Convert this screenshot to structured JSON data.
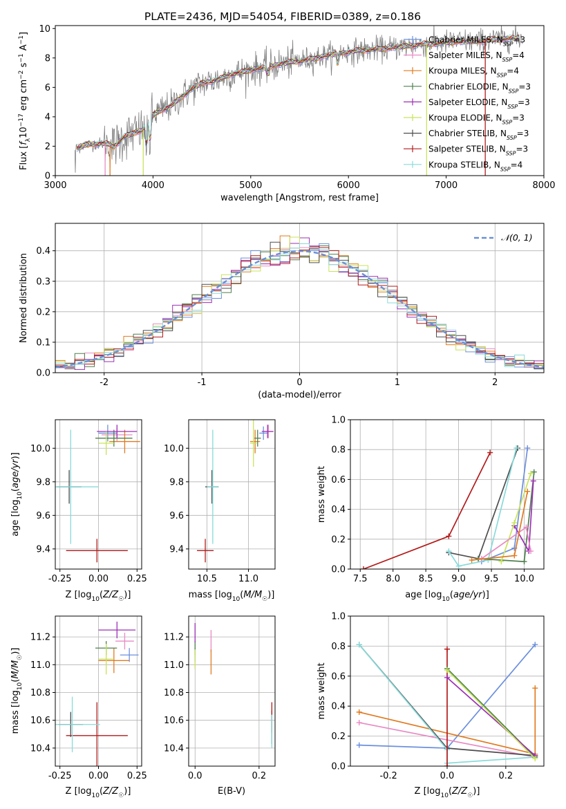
{
  "colors": {
    "Chabrier MILES": "#6b8fde",
    "Salpeter MILES": "#e88ac4",
    "Kroupa MILES": "#e07a1f",
    "Chabrier ELODIE": "#4e7f4e",
    "Salpeter ELODIE": "#9b2fb5",
    "Kroupa ELODIE": "#c8e35a",
    "Chabrier STELIB": "#4d4d4d",
    "Salpeter STELIB": "#b21a1a",
    "Kroupa STELIB": "#88dada",
    "data": "#808080",
    "gauss": "#6a8fd6"
  },
  "chart_data": [
    {
      "type": "line",
      "title": "PLATE=2436, MJD=54054, FIBERID=0389, z=0.186",
      "xlabel": "wavelength [Angstrom, rest frame]",
      "ylabel": "Flux [fλ10^-17 erg cm^-2 s^-1 A^-1]",
      "xlim": [
        3000,
        8000
      ],
      "ylim": [
        0,
        10.2
      ],
      "xticks": [
        3000,
        4000,
        5000,
        6000,
        7000,
        8000
      ],
      "yticks": [
        0,
        2,
        4,
        6,
        8,
        10
      ],
      "legend": {
        "placement": "top-right",
        "entries": [
          {
            "model": "Chabrier MILES",
            "label": "Chabrier MILES, N",
            "nssp": 3
          },
          {
            "model": "Salpeter MILES",
            "label": "Salpeter MILES, N",
            "nssp": 4
          },
          {
            "model": "Kroupa MILES",
            "label": "Kroupa MILES, N",
            "nssp": 4
          },
          {
            "model": "Chabrier ELODIE",
            "label": "Chabrier ELODIE, N",
            "nssp": 3
          },
          {
            "model": "Salpeter ELODIE",
            "label": "Salpeter ELODIE, N",
            "nssp": 3
          },
          {
            "model": "Kroupa ELODIE",
            "label": "Kroupa ELODIE, N",
            "nssp": 3
          },
          {
            "model": "Chabrier STELIB",
            "label": "Chabrier STELIB, N",
            "nssp": 3
          },
          {
            "model": "Salpeter STELIB",
            "label": "Salpeter STELIB, N",
            "nssp": 3
          },
          {
            "model": "Kroupa STELIB",
            "label": "Kroupa STELIB, N",
            "nssp": 4
          }
        ],
        "subscript": "SSP"
      },
      "continuum": {
        "x": [
          3200,
          3300,
          3400,
          3500,
          3600,
          3700,
          3800,
          3900,
          4000,
          4100,
          4200,
          4300,
          4400,
          4500,
          4600,
          4700,
          4800,
          4900,
          5000,
          5100,
          5200,
          5300,
          5400,
          5500,
          5600,
          5700,
          5800,
          5900,
          6000,
          6100,
          6200,
          6300,
          6400,
          6500,
          6600,
          6700,
          6800,
          6900,
          7000,
          7100,
          7200,
          7300,
          7400,
          7500,
          7600,
          7700,
          7800
        ],
        "y": [
          1.8,
          2.1,
          2.15,
          2.2,
          2.0,
          2.6,
          2.9,
          3.1,
          4.1,
          4.5,
          4.8,
          5.4,
          5.9,
          6.3,
          6.4,
          6.6,
          6.9,
          7.0,
          7.2,
          7.3,
          7.4,
          7.6,
          7.7,
          7.8,
          7.9,
          8.05,
          8.2,
          8.3,
          8.4,
          8.5,
          8.55,
          8.6,
          8.65,
          8.75,
          8.8,
          8.9,
          8.95,
          9.0,
          9.05,
          9.1,
          9.15,
          9.1,
          9.2,
          9.25,
          9.3,
          9.35,
          9.4
        ]
      }
    },
    {
      "type": "histogram",
      "xlabel": "(data-model)/error",
      "ylabel": "Normed distribution",
      "xlim": [
        -2.5,
        2.5
      ],
      "ylim": [
        0,
        0.49
      ],
      "xticks": [
        -2,
        -1,
        0,
        1,
        2
      ],
      "yticks": [
        0.0,
        0.1,
        0.2,
        0.3,
        0.4
      ],
      "legend": {
        "placement": "top-right",
        "label": "𝒩(0, 1)"
      }
    },
    {
      "type": "scatter",
      "name": "age-vs-Z",
      "xlabel": "Z [log10(Z/Z☉)]",
      "ylabel": "age  [log10(age/yr)]",
      "xlim": [
        -0.28,
        0.28
      ],
      "ylim": [
        9.28,
        10.17
      ],
      "xticks": [
        -0.25,
        0.0,
        0.25
      ],
      "yticks": [
        9.4,
        9.6,
        9.8,
        10.0
      ],
      "points": [
        {
          "model": "Chabrier MILES",
          "x": 0.06,
          "y": 10.09,
          "xerr": 0.06,
          "yerr": 0.05
        },
        {
          "model": "Salpeter MILES",
          "x": 0.12,
          "y": 10.08,
          "xerr": 0.1,
          "yerr": 0.04
        },
        {
          "model": "Kroupa MILES",
          "x": 0.17,
          "y": 10.04,
          "xerr": 0.1,
          "yerr": 0.07
        },
        {
          "model": "Chabrier ELODIE",
          "x": 0.1,
          "y": 10.06,
          "xerr": 0.12,
          "yerr": 0.05
        },
        {
          "model": "Salpeter ELODIE",
          "x": 0.12,
          "y": 10.1,
          "xerr": 0.13,
          "yerr": 0.04
        },
        {
          "model": "Kroupa ELODIE",
          "x": 0.05,
          "y": 10.03,
          "xerr": 0.05,
          "yerr": 0.07
        },
        {
          "model": "Chabrier STELIB",
          "x": -0.19,
          "y": 9.77,
          "xerr": 0.08,
          "yerr": 0.1
        },
        {
          "model": "Salpeter STELIB",
          "x": -0.01,
          "y": 9.39,
          "xerr": 0.2,
          "yerr": 0.07
        },
        {
          "model": "Kroupa STELIB",
          "x": -0.18,
          "y": 9.77,
          "xerr": 0.18,
          "yerr": 0.34
        }
      ]
    },
    {
      "type": "scatter",
      "name": "age-vs-mass",
      "xlabel": "mass [log10(M/M☉)]",
      "ylabel": "",
      "xlim": [
        10.28,
        11.32
      ],
      "ylim": [
        9.28,
        10.17
      ],
      "xticks": [
        10.5,
        11.0
      ],
      "yticks": [
        9.4,
        9.6,
        9.8,
        10.0
      ],
      "points": [
        {
          "model": "Chabrier MILES",
          "x": 11.18,
          "y": 10.09,
          "xerr": 0.05,
          "yerr": 0.04
        },
        {
          "model": "Salpeter MILES",
          "x": 11.24,
          "y": 10.1,
          "xerr": 0.06,
          "yerr": 0.04
        },
        {
          "model": "Kroupa MILES",
          "x": 11.08,
          "y": 10.04,
          "xerr": 0.06,
          "yerr": 0.07
        },
        {
          "model": "Chabrier ELODIE",
          "x": 11.11,
          "y": 10.06,
          "xerr": 0.04,
          "yerr": 0.05
        },
        {
          "model": "Salpeter ELODIE",
          "x": 11.23,
          "y": 10.1,
          "xerr": 0.07,
          "yerr": 0.04
        },
        {
          "model": "Kroupa ELODIE",
          "x": 11.06,
          "y": 10.03,
          "xerr": 0.04,
          "yerr": 0.14
        },
        {
          "model": "Chabrier STELIB",
          "x": 10.56,
          "y": 9.77,
          "xerr": 0.08,
          "yerr": 0.1
        },
        {
          "model": "Salpeter STELIB",
          "x": 10.48,
          "y": 9.39,
          "xerr": 0.1,
          "yerr": 0.07
        },
        {
          "model": "Kroupa STELIB",
          "x": 10.57,
          "y": 9.77,
          "xerr": 0.07,
          "yerr": 0.34
        }
      ]
    },
    {
      "type": "line",
      "name": "mass-weight-vs-age",
      "xlabel": "age  [log10(age/yr)]",
      "ylabel": "mass weight",
      "xlim": [
        7.35,
        10.3
      ],
      "ylim": [
        0,
        1.0
      ],
      "xticks": [
        7.5,
        8.0,
        8.5,
        9.0,
        9.5,
        10.0
      ],
      "yticks": [
        0.0,
        0.2,
        0.4,
        0.6,
        0.8,
        1.0
      ],
      "series": [
        {
          "model": "Salpeter STELIB",
          "x": [
            7.55,
            8.85,
            9.48
          ],
          "y": [
            0.0,
            0.22,
            0.78
          ]
        },
        {
          "model": "Chabrier STELIB",
          "x": [
            8.85,
            9.3,
            9.9
          ],
          "y": [
            0.11,
            0.07,
            0.81
          ]
        },
        {
          "model": "Chabrier MILES",
          "x": [
            9.35,
            9.85,
            10.05
          ],
          "y": [
            0.05,
            0.14,
            0.81
          ]
        },
        {
          "model": "Kroupa STELIB",
          "x": [
            8.85,
            9.0,
            9.45,
            9.88
          ],
          "y": [
            0.12,
            0.02,
            0.06,
            0.81
          ]
        },
        {
          "model": "Chabrier ELODIE",
          "x": [
            9.3,
            10.0,
            10.15
          ],
          "y": [
            0.07,
            0.05,
            0.65
          ]
        },
        {
          "model": "Salpeter ELODIE",
          "x": [
            9.85,
            10.07,
            10.14
          ],
          "y": [
            0.29,
            0.12,
            0.59
          ]
        },
        {
          "model": "Kroupa ELODIE",
          "x": [
            9.65,
            9.85,
            10.1
          ],
          "y": [
            0.05,
            0.31,
            0.64
          ]
        },
        {
          "model": "Salpeter MILES",
          "x": [
            9.35,
            10.03,
            10.1
          ],
          "y": [
            0.07,
            0.28,
            0.12
          ]
        },
        {
          "model": "Kroupa MILES",
          "x": [
            9.2,
            9.85,
            10.05
          ],
          "y": [
            0.06,
            0.09,
            0.52
          ]
        }
      ]
    },
    {
      "type": "scatter",
      "name": "mass-vs-Z",
      "xlabel": "Z [log10(Z/Z☉)]",
      "ylabel": "mass [log10(M/M☉)]",
      "xlim": [
        -0.28,
        0.28
      ],
      "ylim": [
        10.27,
        11.35
      ],
      "xticks": [
        -0.25,
        0.0,
        0.25
      ],
      "yticks": [
        10.4,
        10.6,
        10.8,
        11.0,
        11.2
      ],
      "points": [
        {
          "model": "Chabrier MILES",
          "x": 0.2,
          "y": 11.07,
          "xerr": 0.06,
          "yerr": 0.05
        },
        {
          "model": "Salpeter MILES",
          "x": 0.17,
          "y": 11.17,
          "xerr": 0.06,
          "yerr": 0.06
        },
        {
          "model": "Kroupa MILES",
          "x": 0.1,
          "y": 11.03,
          "xerr": 0.1,
          "yerr": 0.09
        },
        {
          "model": "Chabrier ELODIE",
          "x": 0.05,
          "y": 11.12,
          "xerr": 0.07,
          "yerr": 0.05
        },
        {
          "model": "Salpeter ELODIE",
          "x": 0.12,
          "y": 11.25,
          "xerr": 0.12,
          "yerr": 0.06
        },
        {
          "model": "Kroupa ELODIE",
          "x": 0.05,
          "y": 11.04,
          "xerr": 0.05,
          "yerr": 0.11
        },
        {
          "model": "Chabrier STELIB",
          "x": -0.18,
          "y": 10.57,
          "xerr": 0.08,
          "yerr": 0.09
        },
        {
          "model": "Salpeter STELIB",
          "x": -0.01,
          "y": 10.49,
          "xerr": 0.2,
          "yerr": 0.24
        },
        {
          "model": "Kroupa STELIB",
          "x": -0.17,
          "y": 10.57,
          "xerr": 0.18,
          "yerr": 0.2
        }
      ]
    },
    {
      "type": "scatter",
      "name": "mass-vs-EBV",
      "xlabel": "E(B-V)",
      "ylabel": "",
      "xlim": [
        -0.02,
        0.25
      ],
      "ylim": [
        10.27,
        11.35
      ],
      "xticks": [
        0.0,
        0.2
      ],
      "yticks": [
        10.4,
        10.6,
        10.8,
        11.0,
        11.2
      ],
      "points": [
        {
          "model": "Chabrier MILES",
          "x": 0.0,
          "y": 11.07,
          "xerr": 0.0,
          "yerr": 0.05
        },
        {
          "model": "Salpeter MILES",
          "x": 0.05,
          "y": 11.17,
          "xerr": 0.0,
          "yerr": 0.08
        },
        {
          "model": "Kroupa MILES",
          "x": 0.05,
          "y": 11.02,
          "xerr": 0.0,
          "yerr": 0.09
        },
        {
          "model": "Chabrier ELODIE",
          "x": 0.0,
          "y": 11.12,
          "xerr": 0.0,
          "yerr": 0.05
        },
        {
          "model": "Salpeter ELODIE",
          "x": 0.0,
          "y": 11.23,
          "xerr": 0.0,
          "yerr": 0.07
        },
        {
          "model": "Kroupa ELODIE",
          "x": 0.0,
          "y": 11.04,
          "xerr": 0.0,
          "yerr": 0.07
        },
        {
          "model": "Chabrier STELIB",
          "x": 0.24,
          "y": 10.55,
          "xerr": 0.0,
          "yerr": 0.12
        },
        {
          "model": "Salpeter STELIB",
          "x": 0.24,
          "y": 10.62,
          "xerr": 0.0,
          "yerr": 0.11
        },
        {
          "model": "Kroupa STELIB",
          "x": 0.24,
          "y": 10.52,
          "xerr": 0.0,
          "yerr": 0.12
        }
      ]
    },
    {
      "type": "line",
      "name": "mass-weight-vs-Z",
      "xlabel": "Z [log10(Z/Z☉)]",
      "ylabel": "mass weight",
      "xlim": [
        -0.33,
        0.33
      ],
      "ylim": [
        0,
        1.0
      ],
      "xticks": [
        -0.2,
        0.0,
        0.2
      ],
      "yticks": [
        0.0,
        0.2,
        0.4,
        0.6,
        0.8,
        1.0
      ],
      "series": [
        {
          "model": "Chabrier MILES",
          "x": [
            -0.3,
            0.0,
            0.3
          ],
          "y": [
            0.14,
            0.12,
            0.81
          ]
        },
        {
          "model": "Salpeter MILES",
          "x": [
            -0.3,
            0.3
          ],
          "y": [
            0.29,
            0.06
          ]
        },
        {
          "model": "Kroupa MILES",
          "x": [
            -0.3,
            0.3,
            0.3
          ],
          "y": [
            0.36,
            0.08,
            0.52
          ]
        },
        {
          "model": "Chabrier STELIB",
          "x": [
            -0.3,
            0.0,
            0.3
          ],
          "y": [
            0.81,
            0.12,
            0.07
          ]
        },
        {
          "model": "Kroupa STELIB",
          "x": [
            -0.3,
            0.0,
            0.0,
            0.3
          ],
          "y": [
            0.81,
            0.11,
            0.02,
            0.06
          ]
        },
        {
          "model": "Salpeter STELIB",
          "x": [
            0.0,
            0.0
          ],
          "y": [
            0.0,
            0.78
          ]
        },
        {
          "model": "Chabrier ELODIE",
          "x": [
            0.0,
            0.3
          ],
          "y": [
            0.65,
            0.06
          ]
        },
        {
          "model": "Salpeter ELODIE",
          "x": [
            0.0,
            0.3
          ],
          "y": [
            0.59,
            0.07
          ]
        },
        {
          "model": "Kroupa ELODIE",
          "x": [
            0.0,
            0.3
          ],
          "y": [
            0.64,
            0.05
          ]
        }
      ]
    }
  ]
}
